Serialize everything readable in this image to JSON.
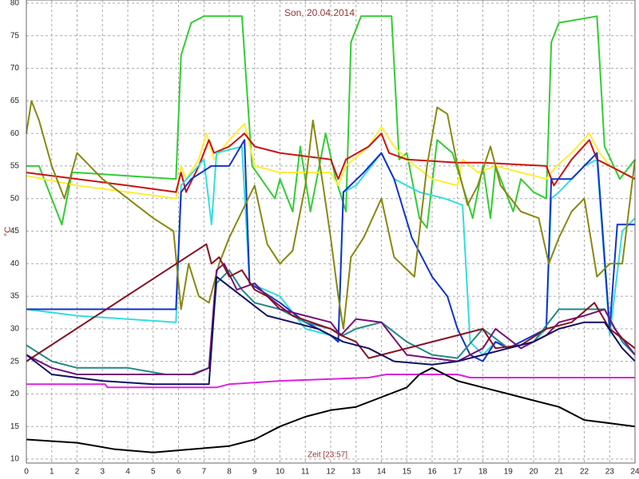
{
  "chart_data": {
    "type": "line",
    "title": "Son, 20.04.2014",
    "y_label": "°C",
    "x_label": "Zeit [23:57]",
    "xlim": [
      0,
      24
    ],
    "xticks": [
      0,
      1,
      2,
      3,
      4,
      5,
      6,
      7,
      8,
      9,
      10,
      11,
      12,
      13,
      14,
      15,
      16,
      17,
      18,
      19,
      20,
      21,
      22,
      23,
      24
    ],
    "ylim": [
      10,
      80
    ],
    "yticks": [
      10,
      15,
      20,
      25,
      30,
      35,
      40,
      45,
      50,
      55,
      60,
      65,
      70,
      75,
      80
    ],
    "grid": true,
    "series": [
      {
        "color": "#33cc33",
        "x": [
          0,
          0.5,
          1.4,
          1.8,
          2,
          5.9,
          6.1,
          6.5,
          7,
          8.5,
          8.9,
          9.8,
          10,
          10.5,
          10.8,
          11.2,
          11.8,
          12.2,
          12.6,
          12.8,
          13.2,
          14.4,
          14.7,
          15,
          15.5,
          15.8,
          16.2,
          16.8,
          17.2,
          17.6,
          18,
          18.3,
          18.5,
          19.2,
          19.5,
          20,
          20.5,
          20.7,
          21,
          22.5,
          22.8,
          23.4,
          24
        ],
        "values": [
          55,
          55,
          46,
          54,
          54,
          53,
          72,
          77,
          78,
          78,
          55,
          50,
          53,
          48,
          58,
          48,
          60,
          53,
          48,
          74,
          78,
          78,
          56,
          57,
          47,
          45.5,
          59,
          57,
          52,
          47,
          55,
          47,
          55,
          48,
          53,
          51,
          50,
          74,
          77,
          78,
          58,
          53,
          56
        ]
      },
      {
        "color": "#ffee33",
        "x": [
          0,
          2,
          4,
          5.9,
          6.1,
          6.3,
          6.8,
          7.1,
          7.4,
          8,
          8.6,
          9,
          10,
          12,
          12.3,
          12.6,
          13.5,
          14,
          14.5,
          15,
          16,
          17,
          17.2,
          17.8,
          18.5,
          19.5,
          20.5,
          20.9,
          21.5,
          22.2,
          22.6,
          23,
          24
        ],
        "values": [
          53.5,
          52,
          51,
          50,
          55,
          53,
          56,
          60,
          56,
          59,
          61.5,
          55,
          54,
          54,
          52,
          55,
          58,
          61,
          58,
          56,
          53,
          52,
          56,
          54,
          55,
          54,
          53,
          55,
          57,
          60,
          57,
          55,
          53
        ]
      },
      {
        "color": "#cc1111",
        "x": [
          0,
          2,
          4,
          5.9,
          6.1,
          6.3,
          6.8,
          7.2,
          7.4,
          8,
          8.6,
          9,
          10,
          12,
          12.3,
          12.6,
          13.5,
          14,
          14.3,
          15,
          17,
          18,
          20.5,
          20.8,
          21.5,
          22.2,
          22.5,
          23,
          24
        ],
        "values": [
          54,
          53,
          52,
          51,
          54,
          51,
          55,
          59,
          57,
          58,
          60,
          58,
          57,
          56,
          53,
          56,
          58,
          60,
          57,
          56,
          55.5,
          55.5,
          55,
          52,
          56,
          59,
          56,
          55,
          53
        ]
      },
      {
        "color": "#33dddd",
        "x": [
          0,
          2,
          5.9,
          6.1,
          7,
          7.3,
          7.5,
          8.5,
          8.8,
          10,
          11,
          12,
          12.3,
          12.5,
          13,
          14,
          14.5,
          15.5,
          16.5,
          17.2,
          17.5,
          18,
          18.5,
          19,
          20,
          20.5,
          20.7,
          21,
          22,
          22.5,
          23,
          23.5,
          24
        ],
        "values": [
          33,
          32,
          31,
          52,
          56,
          46,
          57,
          58,
          37,
          35,
          30,
          29,
          28,
          51,
          52,
          57,
          53,
          51,
          50,
          49,
          28,
          26,
          28,
          27,
          28,
          30,
          50,
          51,
          55,
          56,
          29,
          45,
          47
        ]
      },
      {
        "color": "#1133cc",
        "x": [
          0,
          5.9,
          6.1,
          6.5,
          7.3,
          8,
          8.6,
          8.8,
          10,
          11,
          12,
          12.3,
          12.5,
          13.3,
          14,
          14.5,
          15.2,
          16,
          16.6,
          17,
          17.5,
          18,
          18.5,
          19,
          20,
          20.5,
          20.7,
          21.5,
          22.5,
          23,
          23.3,
          24
        ],
        "values": [
          33,
          33,
          51,
          53,
          55,
          55,
          59,
          37,
          34,
          31,
          29,
          28,
          51,
          54,
          57,
          53,
          44,
          38,
          35,
          30,
          26,
          25,
          28,
          27,
          29,
          30,
          53,
          53,
          57,
          30,
          46,
          46
        ]
      },
      {
        "color": "#888811",
        "x": [
          0,
          0.2,
          0.5,
          1,
          1.5,
          2,
          2.5,
          3,
          4,
          5,
          5.8,
          6.1,
          6.4,
          6.8,
          7.2,
          7.6,
          8,
          8.5,
          9,
          9.5,
          10,
          10.5,
          11,
          11.3,
          11.7,
          12,
          12.3,
          12.5,
          12.8,
          13.3,
          14,
          14.5,
          15.3,
          15.8,
          16.2,
          16.6,
          17,
          17.4,
          17.8,
          18.3,
          18.7,
          19.5,
          20.2,
          20.6,
          21,
          21.5,
          22,
          22.5,
          23,
          23.5,
          24
        ],
        "values": [
          60,
          65,
          62,
          55,
          50,
          57,
          55,
          53,
          50,
          47,
          45,
          33,
          40,
          35,
          34,
          40,
          44,
          48,
          52,
          43,
          40,
          42,
          52,
          62,
          52,
          44,
          35,
          30,
          41,
          44,
          50,
          41,
          38,
          55,
          64,
          63,
          55,
          49,
          52,
          58,
          52,
          48,
          47,
          40,
          44,
          48,
          50,
          38,
          40,
          40,
          56
        ]
      },
      {
        "color": "#228888",
        "x": [
          0,
          1,
          2,
          4,
          5.5,
          6.5,
          7.2,
          7.5,
          8,
          8.5,
          9,
          10,
          11,
          12,
          12.5,
          13,
          14,
          15,
          16,
          17,
          18,
          19,
          20,
          21,
          22,
          22.8,
          23.5,
          24
        ],
        "values": [
          27.5,
          25,
          24,
          24,
          23,
          23,
          24,
          37,
          39,
          36,
          34,
          33,
          31,
          30,
          29,
          30,
          31,
          28,
          26,
          25.5,
          30,
          27,
          28,
          33,
          33,
          33,
          28,
          26
        ]
      },
      {
        "color": "#771177",
        "x": [
          0,
          1,
          2,
          5.5,
          6.6,
          7.2,
          7.5,
          7.8,
          8.3,
          9,
          10,
          11,
          12,
          12.4,
          13,
          14,
          15,
          16,
          17,
          18,
          18.5,
          19.5,
          20.5,
          21,
          22,
          22.8,
          23.2,
          24
        ],
        "values": [
          26,
          24,
          23,
          23,
          23,
          24,
          39,
          40,
          36,
          37,
          33,
          32,
          31,
          29,
          31.5,
          31,
          26,
          25.5,
          25,
          27,
          30,
          27,
          29,
          31,
          32,
          33,
          30,
          26
        ]
      },
      {
        "color": "#881122",
        "x": [
          0,
          7.1,
          7.3,
          7.6,
          8,
          8.5,
          9,
          9.5,
          10.5,
          12,
          12.4,
          13,
          13.5,
          18,
          18.5,
          19.5,
          20.5,
          21.5,
          22.4,
          23,
          24
        ],
        "values": [
          25,
          43,
          40,
          41,
          38,
          39,
          36,
          35,
          32,
          30,
          29,
          28,
          25.5,
          30,
          27,
          27.5,
          30,
          31,
          34,
          30,
          27
        ]
      },
      {
        "color": "#111166",
        "x": [
          0,
          1,
          3,
          5,
          7.2,
          7.5,
          8.5,
          9.5,
          10.5,
          11.5,
          12.5,
          13.5,
          14.5,
          16,
          17,
          18,
          19,
          20,
          21,
          22,
          22.8,
          23.5,
          24
        ],
        "values": [
          26,
          23,
          22,
          21.5,
          21.5,
          38,
          35,
          32,
          31,
          30,
          28,
          27,
          25,
          24.5,
          25,
          26,
          27,
          28,
          30,
          31,
          31,
          27,
          25
        ]
      },
      {
        "color": "#dd22dd",
        "x": [
          0,
          3.1,
          3.2,
          7.5,
          8,
          10,
          13.5,
          14.2,
          17,
          17.5,
          24
        ],
        "values": [
          21.5,
          21.5,
          21,
          21,
          21.5,
          22,
          22.5,
          23,
          23,
          22.5,
          22.5
        ]
      },
      {
        "color": "#000000",
        "x": [
          0,
          2,
          3.5,
          5,
          6.5,
          8,
          9,
          10,
          11,
          12,
          13,
          14,
          15,
          15.5,
          16,
          16.5,
          17,
          18,
          19,
          20,
          21,
          22,
          23,
          24
        ],
        "values": [
          13,
          12.5,
          11.5,
          11,
          11.5,
          12,
          13,
          15,
          16.5,
          17.5,
          18,
          19.5,
          21,
          23,
          24,
          23,
          22,
          21,
          20,
          19,
          18,
          16,
          15.5,
          15
        ]
      }
    ]
  }
}
